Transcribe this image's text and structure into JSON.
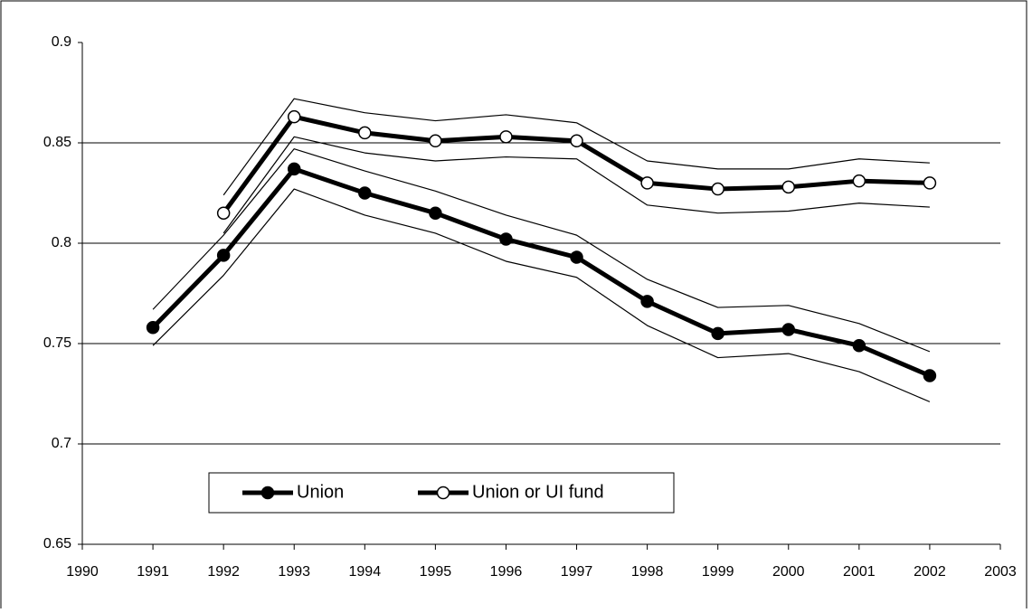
{
  "chart_data": {
    "type": "line",
    "x": [
      1991,
      1992,
      1993,
      1994,
      1995,
      1996,
      1997,
      1998,
      1999,
      2000,
      2001,
      2002
    ],
    "series": [
      {
        "name": "Union",
        "color": "#000000",
        "marker": "filled",
        "values": [
          0.758,
          0.794,
          0.837,
          0.825,
          0.815,
          0.802,
          0.793,
          0.771,
          0.755,
          0.757,
          0.749,
          0.734
        ],
        "upper": [
          0.767,
          0.804,
          0.847,
          0.836,
          0.826,
          0.814,
          0.804,
          0.782,
          0.768,
          0.769,
          0.76,
          0.746
        ],
        "lower": [
          0.749,
          0.784,
          0.827,
          0.814,
          0.805,
          0.791,
          0.783,
          0.759,
          0.743,
          0.745,
          0.736,
          0.721
        ]
      },
      {
        "name": "Union or UI fund",
        "color": "#000000",
        "marker": "open",
        "values": [
          null,
          0.815,
          0.863,
          0.855,
          0.851,
          0.853,
          0.851,
          0.83,
          0.827,
          0.828,
          0.831,
          0.83
        ],
        "upper": [
          null,
          0.824,
          0.872,
          0.865,
          0.861,
          0.864,
          0.86,
          0.841,
          0.837,
          0.837,
          0.842,
          0.84
        ],
        "lower": [
          null,
          0.805,
          0.853,
          0.845,
          0.841,
          0.843,
          0.842,
          0.819,
          0.815,
          0.816,
          0.82,
          0.818
        ]
      }
    ],
    "xlim": [
      1990,
      2003
    ],
    "xticks": [
      1990,
      1991,
      1992,
      1993,
      1994,
      1995,
      1996,
      1997,
      1998,
      1999,
      2000,
      2001,
      2002,
      2003
    ],
    "ylim": [
      0.65,
      0.9
    ],
    "yticks": [
      0.65,
      0.7,
      0.75,
      0.8,
      0.85,
      0.9
    ],
    "grid": true
  }
}
